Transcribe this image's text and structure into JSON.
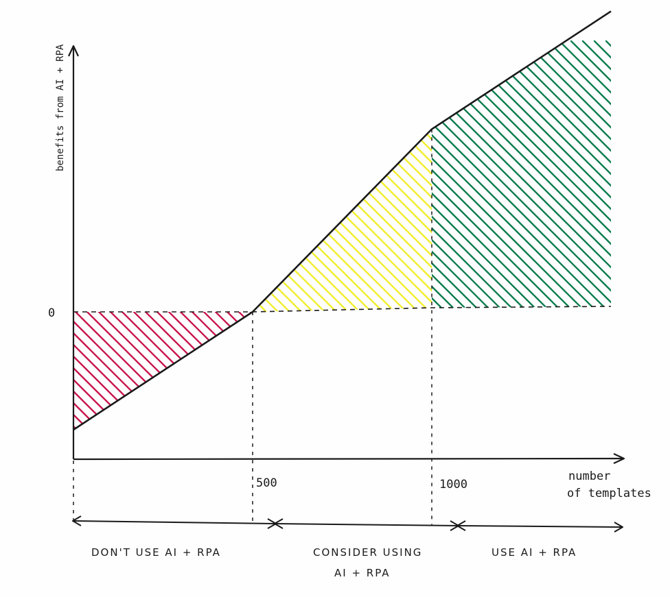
{
  "chart_data": {
    "type": "line",
    "title": "",
    "ylabel": "benefits from AI + RPA",
    "xlabel_line1": "number",
    "xlabel_line2": "of templates",
    "y_zero_label": "0",
    "x_ticks": [
      {
        "label": "500",
        "value": 500
      },
      {
        "label": "1000",
        "value": 1000
      }
    ],
    "xlim": [
      0,
      1500
    ],
    "series": [
      {
        "x": [
          0,
          500,
          1000,
          1500
        ],
        "y": [
          -1,
          0,
          1.55,
          2.55
        ]
      }
    ],
    "regions": [
      {
        "from": 0,
        "to": 500,
        "color": "#c9174d",
        "label_lines": [
          "DON'T USE AI + RPA"
        ]
      },
      {
        "from": 500,
        "to": 1000,
        "color": "#f2ee2e",
        "label_lines": [
          "CONSIDER USING",
          "AI + RPA"
        ]
      },
      {
        "from": 1000,
        "to": 1500,
        "color": "#0e7d4f",
        "label_lines": [
          "USE AI + RPA"
        ]
      }
    ]
  }
}
